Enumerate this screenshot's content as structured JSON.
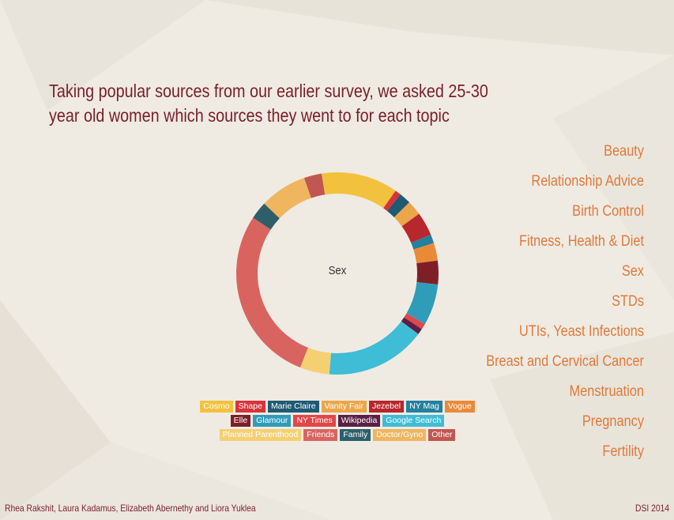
{
  "headline": "Taking popular sources from our earlier survey, we asked 25-30 year old women which sources they went to for each topic",
  "topics": [
    "Beauty",
    "Relationship Advice",
    "Birth Control",
    "Fitness, Health & Diet",
    "Sex",
    "STDs",
    "UTIs, Yeast Infections",
    "Breast and Cervical Cancer",
    "Menstruation",
    "Pregnancy",
    "Fertility"
  ],
  "chart_data": {
    "type": "pie",
    "donut": true,
    "center_label": "Sex",
    "legend_position": "bottom",
    "slices": [
      {
        "name": "Cosmo",
        "value": 13,
        "color": "#f2c23e"
      },
      {
        "name": "Shape",
        "value": 1,
        "color": "#d8333a"
      },
      {
        "name": "Marie Claire",
        "value": 2,
        "color": "#1f5a73"
      },
      {
        "name": "Vanity Fair",
        "value": 2.5,
        "color": "#eba64a"
      },
      {
        "name": "Jezebel",
        "value": 4,
        "color": "#b8272c"
      },
      {
        "name": "NY Mag",
        "value": 1.5,
        "color": "#23809e"
      },
      {
        "name": "Vogue",
        "value": 3,
        "color": "#ea8a38"
      },
      {
        "name": "Elle",
        "value": 4,
        "color": "#7e1f27"
      },
      {
        "name": "Glamour",
        "value": 7,
        "color": "#2f9cba"
      },
      {
        "name": "NY Times",
        "value": 1,
        "color": "#e04749"
      },
      {
        "name": "Wikipedia",
        "value": 1,
        "color": "#5a1f45"
      },
      {
        "name": "Google Search",
        "value": 17,
        "color": "#3fbcd6"
      },
      {
        "name": "Planned Parenthood",
        "value": 5,
        "color": "#f5d073"
      },
      {
        "name": "Friends",
        "value": 30,
        "color": "#d9645f"
      },
      {
        "name": "Family",
        "value": 3,
        "color": "#2e5e6a"
      },
      {
        "name": "Doctor/Gyno",
        "value": 8,
        "color": "#f0b55f"
      },
      {
        "name": "Other",
        "value": 3,
        "color": "#c15752"
      }
    ]
  },
  "footer": {
    "authors": "Rhea Rakshit, Laura Kadamus, Elizabeth Abernethy and Liora Yuklea",
    "event": "DSI 2014"
  }
}
